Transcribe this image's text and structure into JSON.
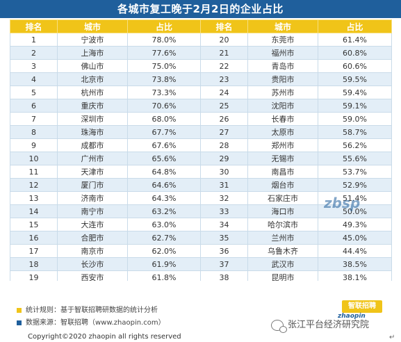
{
  "title": "各城市复工晚于2月2日的企业占比",
  "headers": [
    "排名",
    "城市",
    "占比",
    "排名",
    "城市",
    "占比"
  ],
  "rows": [
    {
      "r1": "1",
      "c1": "宁波市",
      "p1": "78.0%",
      "r2": "20",
      "c2": "东莞市",
      "p2": "61.4%"
    },
    {
      "r1": "2",
      "c1": "上海市",
      "p1": "77.6%",
      "r2": "21",
      "c2": "福州市",
      "p2": "60.8%"
    },
    {
      "r1": "3",
      "c1": "佛山市",
      "p1": "75.0%",
      "r2": "22",
      "c2": "青岛市",
      "p2": "60.6%"
    },
    {
      "r1": "4",
      "c1": "北京市",
      "p1": "73.8%",
      "r2": "23",
      "c2": "贵阳市",
      "p2": "59.5%"
    },
    {
      "r1": "5",
      "c1": "杭州市",
      "p1": "73.3%",
      "r2": "24",
      "c2": "苏州市",
      "p2": "59.4%"
    },
    {
      "r1": "6",
      "c1": "重庆市",
      "p1": "70.6%",
      "r2": "25",
      "c2": "沈阳市",
      "p2": "59.1%"
    },
    {
      "r1": "7",
      "c1": "深圳市",
      "p1": "68.0%",
      "r2": "26",
      "c2": "长春市",
      "p2": "59.0%"
    },
    {
      "r1": "8",
      "c1": "珠海市",
      "p1": "67.7%",
      "r2": "27",
      "c2": "太原市",
      "p2": "58.7%"
    },
    {
      "r1": "9",
      "c1": "成都市",
      "p1": "67.6%",
      "r2": "28",
      "c2": "郑州市",
      "p2": "56.2%"
    },
    {
      "r1": "10",
      "c1": "广州市",
      "p1": "65.6%",
      "r2": "29",
      "c2": "无锡市",
      "p2": "55.6%"
    },
    {
      "r1": "11",
      "c1": "天津市",
      "p1": "64.8%",
      "r2": "30",
      "c2": "南昌市",
      "p2": "53.7%"
    },
    {
      "r1": "12",
      "c1": "厦门市",
      "p1": "64.6%",
      "r2": "31",
      "c2": "烟台市",
      "p2": "52.9%"
    },
    {
      "r1": "13",
      "c1": "济南市",
      "p1": "64.3%",
      "r2": "32",
      "c2": "石家庄市",
      "p2": "51.4%"
    },
    {
      "r1": "14",
      "c1": "南宁市",
      "p1": "63.2%",
      "r2": "33",
      "c2": "海口市",
      "p2": "50.0%"
    },
    {
      "r1": "15",
      "c1": "大连市",
      "p1": "63.0%",
      "r2": "34",
      "c2": "哈尔滨市",
      "p2": "49.3%"
    },
    {
      "r1": "16",
      "c1": "合肥市",
      "p1": "62.7%",
      "r2": "35",
      "c2": "兰州市",
      "p2": "45.0%"
    },
    {
      "r1": "17",
      "c1": "南京市",
      "p1": "62.0%",
      "r2": "36",
      "c2": "乌鲁木齐",
      "p2": "44.4%"
    },
    {
      "r1": "18",
      "c1": "长沙市",
      "p1": "61.9%",
      "r2": "37",
      "c2": "武汉市",
      "p2": "38.5%"
    },
    {
      "r1": "19",
      "c1": "西安市",
      "p1": "61.8%",
      "r2": "38",
      "c2": "昆明市",
      "p2": "38.1%"
    }
  ],
  "notes": {
    "rule": "统计规则：基于智联招聘研数据的统计分析",
    "source": "数据来源：智联招聘（www.zhaopin.com）",
    "copyright": "Copyright©2020 zhaopin all rights reserved"
  },
  "logo": {
    "main": "智联招聘",
    "sub": "zhaopin"
  },
  "watermark": "zbsp",
  "wechat_account": "张江平台经济研究院",
  "colors": {
    "title_bg": "#1f5f9c",
    "header_bg": "#f0c419",
    "row_alt": "#e3eef7",
    "marker_yellow": "#f0c419",
    "marker_blue": "#1f5f9c"
  }
}
